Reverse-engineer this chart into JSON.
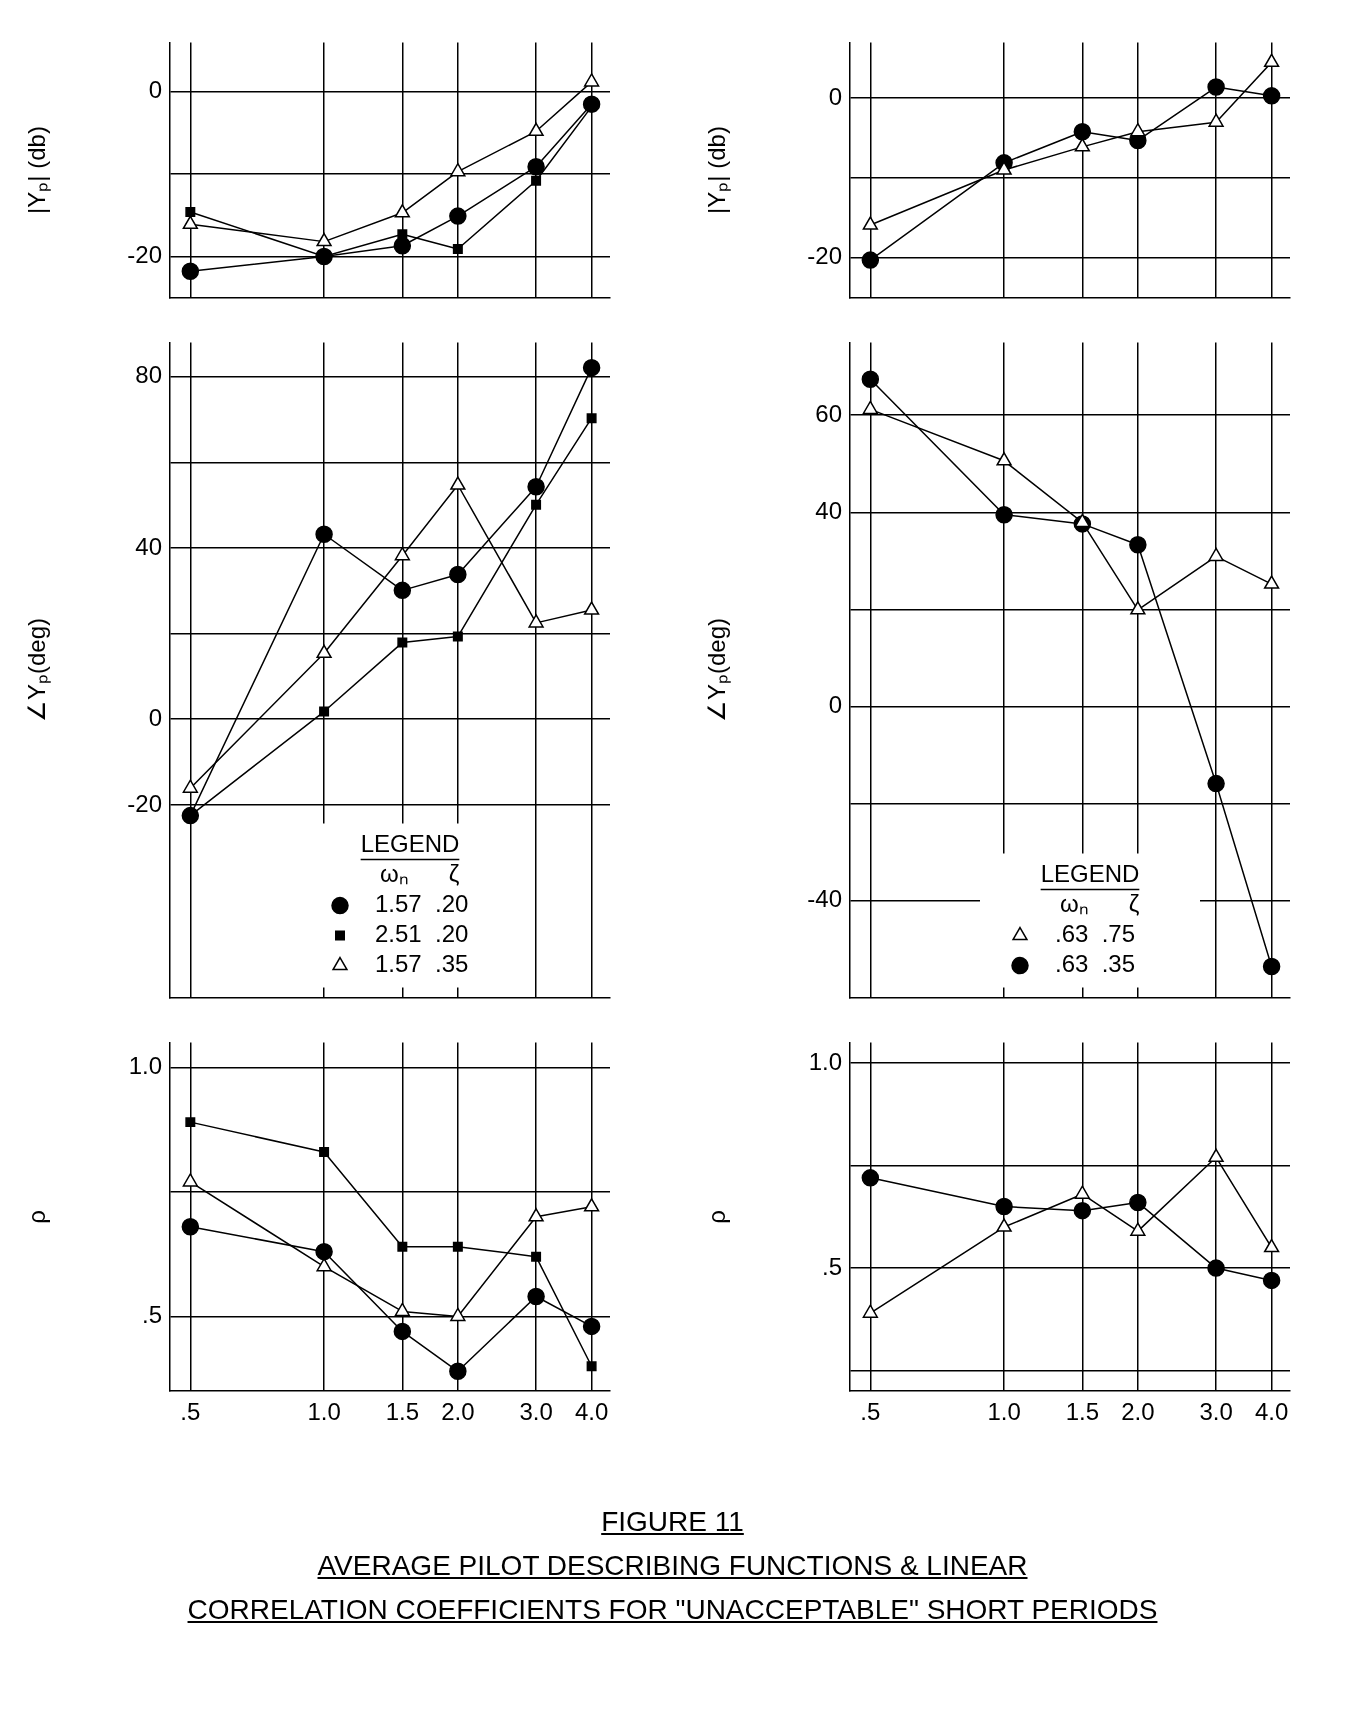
{
  "chart_data": [
    {
      "type": "line",
      "title": "FIGURE 11",
      "subtitle": "AVERAGE PILOT DESCRIBING FUNCTIONS & LINEAR\nCORRELATION COEFFICIENTS FOR \"UNACCEPTABLE\" SHORT PERIODS",
      "ylabel": "|Yₚ| (db)",
      "log": "x",
      "grid": true,
      "tick_labels": "y",
      "x": [
        0.5,
        1,
        1.5,
        2,
        3,
        4
      ],
      "xlim": [
        0.45,
        4.4
      ],
      "xticks": [
        {
          "value": 0.5,
          "label": null
        },
        {
          "value": 1,
          "label": null
        },
        {
          "value": 1.5,
          "label": null
        },
        {
          "value": 2,
          "label": null
        },
        {
          "value": 3,
          "label": null
        },
        {
          "value": 4,
          "label": null
        }
      ],
      "ylim": [
        -25,
        6
      ],
      "yticks": [
        0,
        {
          "value": -10,
          "label": null
        },
        -20
      ],
      "series": [
        {
          "color": "#000000",
          "marker": "circle",
          "values": [
            -21.8,
            -20,
            -18.7,
            -15.1,
            -9.1,
            -1.5
          ]
        },
        {
          "color": "#000000",
          "marker": "square",
          "values": [
            -14.6,
            -20,
            -17.3,
            -19.1,
            -10.8,
            -1.8
          ]
        },
        {
          "color": "#000000",
          "marker": "triangle",
          "values": [
            -16.1,
            -18.2,
            -14.7,
            -9.7,
            -4.8,
            1.2
          ]
        }
      ]
    },
    {
      "type": "line",
      "ylabel": "∠Yₚ(deg)",
      "log": "x",
      "grid": true,
      "tick_labels": "y",
      "legend": "bottom",
      "legend_title": "LEGEND",
      "annotations": [
        "ωₙ      ζ"
      ],
      "x": [
        0.5,
        1,
        1.5,
        2,
        3,
        4
      ],
      "xlim": [
        0.45,
        4.4
      ],
      "xticks": [
        {
          "value": 0.5,
          "label": null
        },
        {
          "value": 1,
          "label": null
        },
        {
          "value": 1.5,
          "label": null
        },
        {
          "value": 2,
          "label": null
        },
        {
          "value": 3,
          "label": null
        },
        {
          "value": 4,
          "label": null
        }
      ],
      "ylim": [
        -65,
        88
      ],
      "yticks": [
        80,
        {
          "value": 60,
          "label": null
        },
        40,
        {
          "value": 20,
          "label": null
        },
        0,
        -20
      ],
      "series": [
        {
          "name": "1.57  .20",
          "color": "#000000",
          "marker": "circle",
          "values": [
            -22.5,
            43.2,
            30.1,
            33.8,
            54.3,
            82.1
          ]
        },
        {
          "name": "2.51  .20",
          "color": "#000000",
          "marker": "square",
          "values": [
            -22.5,
            1.8,
            17.9,
            19.3,
            50.1,
            70.3
          ]
        },
        {
          "name": "1.57  .35",
          "color": "#000000",
          "marker": "triangle",
          "values": [
            -16.1,
            15.4,
            38.2,
            54.7,
            22.5,
            25.5
          ]
        }
      ]
    },
    {
      "type": "line",
      "ylabel": "ρ",
      "log": "x",
      "grid": true,
      "x": [
        0.5,
        1,
        1.5,
        2,
        3,
        4
      ],
      "xlim": [
        0.45,
        4.4
      ],
      "xticks": [
        {
          "value": 0.5,
          "label": ".5"
        },
        {
          "value": 1,
          "label": "1.0"
        },
        {
          "value": 1.5,
          "label": "1.5"
        },
        {
          "value": 2,
          "label": "2.0"
        },
        {
          "value": 3,
          "label": "3.0"
        },
        {
          "value": 4,
          "label": "4.0"
        }
      ],
      "ylim": [
        0.35,
        1.05
      ],
      "yticks": [
        {
          "value": 1,
          "label": "1.0"
        },
        {
          "value": 0.75,
          "label": null
        },
        {
          "value": 0.5,
          "label": ".5"
        }
      ],
      "series": [
        {
          "color": "#000000",
          "marker": "circle",
          "values": [
            0.68,
            0.63,
            0.47,
            0.39,
            0.54,
            0.48
          ]
        },
        {
          "color": "#000000",
          "marker": "square",
          "values": [
            0.89,
            0.83,
            0.64,
            0.64,
            0.62,
            0.4
          ]
        },
        {
          "color": "#000000",
          "marker": "triangle",
          "values": [
            0.77,
            0.6,
            0.51,
            0.5,
            0.7,
            0.72
          ]
        }
      ]
    },
    {
      "type": "line",
      "ylabel": "|Yₚ| (db)",
      "log": "x",
      "grid": true,
      "tick_labels": "y",
      "x": [
        0.5,
        1,
        1.5,
        2,
        3,
        4
      ],
      "xlim": [
        0.45,
        4.4
      ],
      "xticks": [
        {
          "value": 0.5,
          "label": null
        },
        {
          "value": 1,
          "label": null
        },
        {
          "value": 1.5,
          "label": null
        },
        {
          "value": 2,
          "label": null
        },
        {
          "value": 3,
          "label": null
        },
        {
          "value": 4,
          "label": null
        }
      ],
      "ylim": [
        -25,
        7
      ],
      "yticks": [
        0,
        {
          "value": -10,
          "label": null
        },
        -20
      ],
      "series": [
        {
          "color": "#000000",
          "marker": "triangle",
          "values": [
            -15.9,
            -9,
            -6.1,
            -4.2,
            -3,
            4.5
          ]
        },
        {
          "color": "#000000",
          "marker": "circle",
          "values": [
            -20.3,
            -8.1,
            -4.2,
            -5.3,
            1.4,
            0.3
          ]
        }
      ]
    },
    {
      "type": "line",
      "ylabel": "∠Yₚ(deg)",
      "log": "x",
      "grid": true,
      "tick_labels": "y",
      "legend": "bottom",
      "legend_title": "LEGEND",
      "annotations": [
        "ωₙ      ζ"
      ],
      "x": [
        0.5,
        1,
        1.5,
        2,
        3,
        4
      ],
      "xlim": [
        0.45,
        4.4
      ],
      "xticks": [
        {
          "value": 0.5,
          "label": null
        },
        {
          "value": 1,
          "label": null
        },
        {
          "value": 1.5,
          "label": null
        },
        {
          "value": 2,
          "label": null
        },
        {
          "value": 3,
          "label": null
        },
        {
          "value": 4,
          "label": null
        }
      ],
      "ylim": [
        -60,
        75
      ],
      "yticks": [
        60,
        40,
        {
          "value": 20,
          "label": null
        },
        0,
        {
          "value": -20,
          "label": null
        },
        -40
      ],
      "series": [
        {
          "name": ".63  .75",
          "color": "#000000",
          "marker": "triangle",
          "values": [
            61.2,
            50.6,
            37.9,
            19.9,
            30.9,
            25.2
          ]
        },
        {
          "name": ".63  .35",
          "color": "#000000",
          "marker": "circle",
          "values": [
            67.4,
            39.5,
            37.6,
            33.3,
            -15.9,
            -53.6
          ]
        }
      ]
    },
    {
      "type": "line",
      "ylabel": "ρ",
      "log": "x",
      "grid": true,
      "x": [
        0.5,
        1,
        1.5,
        2,
        3,
        4
      ],
      "xlim": [
        0.45,
        4.4
      ],
      "xticks": [
        {
          "value": 0.5,
          "label": ".5"
        },
        {
          "value": 1,
          "label": "1.0"
        },
        {
          "value": 1.5,
          "label": "1.5"
        },
        {
          "value": 2,
          "label": "2.0"
        },
        {
          "value": 3,
          "label": "3.0"
        },
        {
          "value": 4,
          "label": "4.0"
        }
      ],
      "ylim": [
        0.2,
        1.05
      ],
      "yticks": [
        {
          "value": 1,
          "label": "1.0"
        },
        {
          "value": 0.75,
          "label": null
        },
        {
          "value": 0.5,
          "label": ".5"
        },
        {
          "value": 0.25,
          "label": null
        }
      ],
      "series": [
        {
          "color": "#000000",
          "marker": "triangle",
          "values": [
            0.39,
            0.6,
            0.68,
            0.59,
            0.77,
            0.55
          ]
        },
        {
          "color": "#000000",
          "marker": "circle",
          "values": [
            0.72,
            0.65,
            0.64,
            0.66,
            0.5,
            0.47
          ]
        }
      ]
    }
  ]
}
